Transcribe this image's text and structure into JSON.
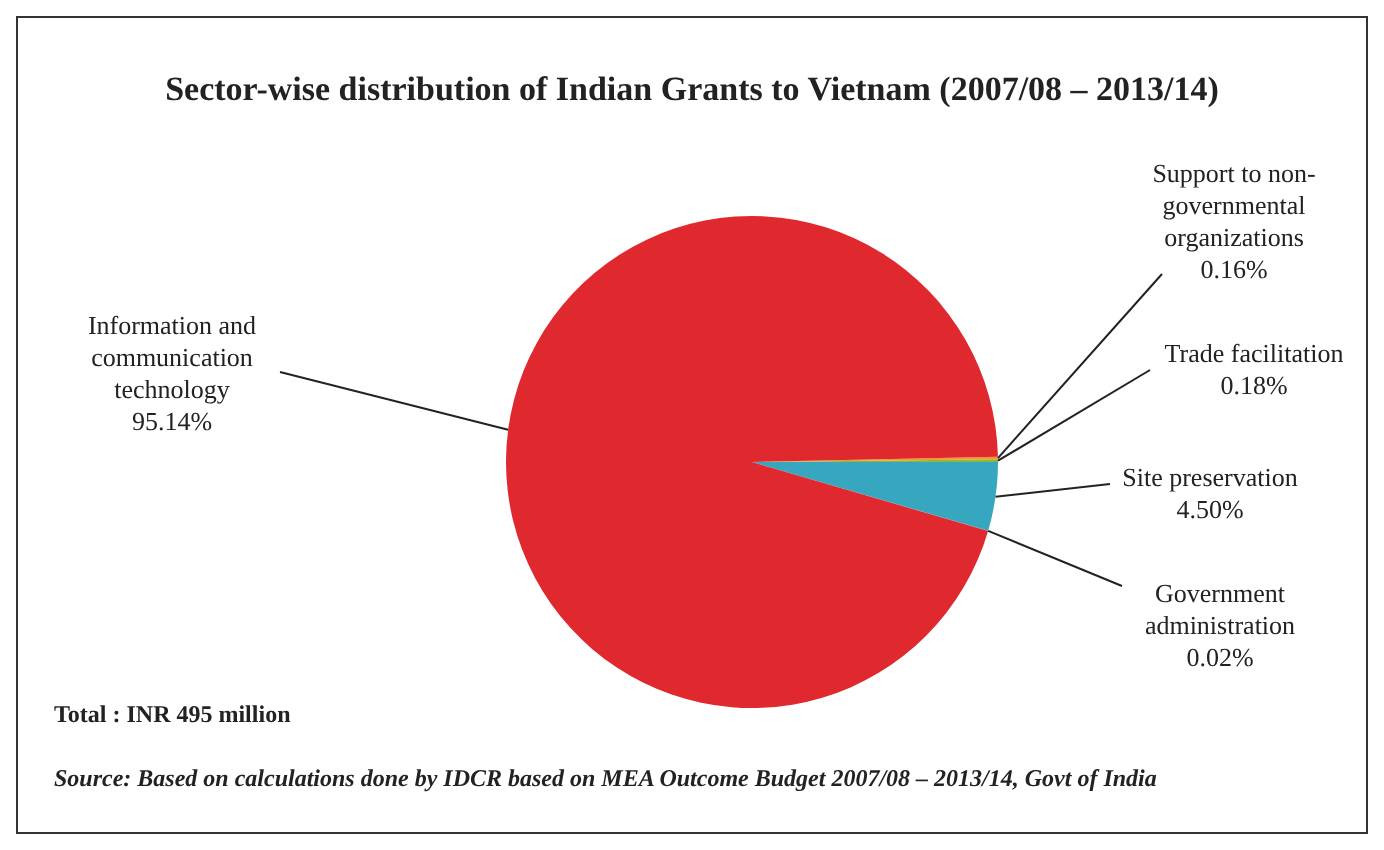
{
  "chart_data": {
    "type": "pie",
    "title": "Sector-wise distribution of Indian Grants to Vietnam (2007/08 – 2013/14)",
    "categories": [
      "Government administration",
      "Site preservation",
      "Trade facilitation",
      "Support to non-governmental organizations",
      "Information and communication technology"
    ],
    "values": [
      0.02,
      4.5,
      0.18,
      0.16,
      95.14
    ],
    "value_labels": [
      "0.02%",
      "4.50%",
      "0.18%",
      "0.16%",
      "95.14%"
    ],
    "colors": [
      "#7b4fa0",
      "#36a7bf",
      "#8db83c",
      "#f39a2c",
      "#e0292e"
    ],
    "annotations": [
      "Total : INR 495 million",
      "Source: Based on calculations done by IDCR based on MEA Outcome Budget 2007/08 – 2013/14, Govt of India"
    ]
  }
}
